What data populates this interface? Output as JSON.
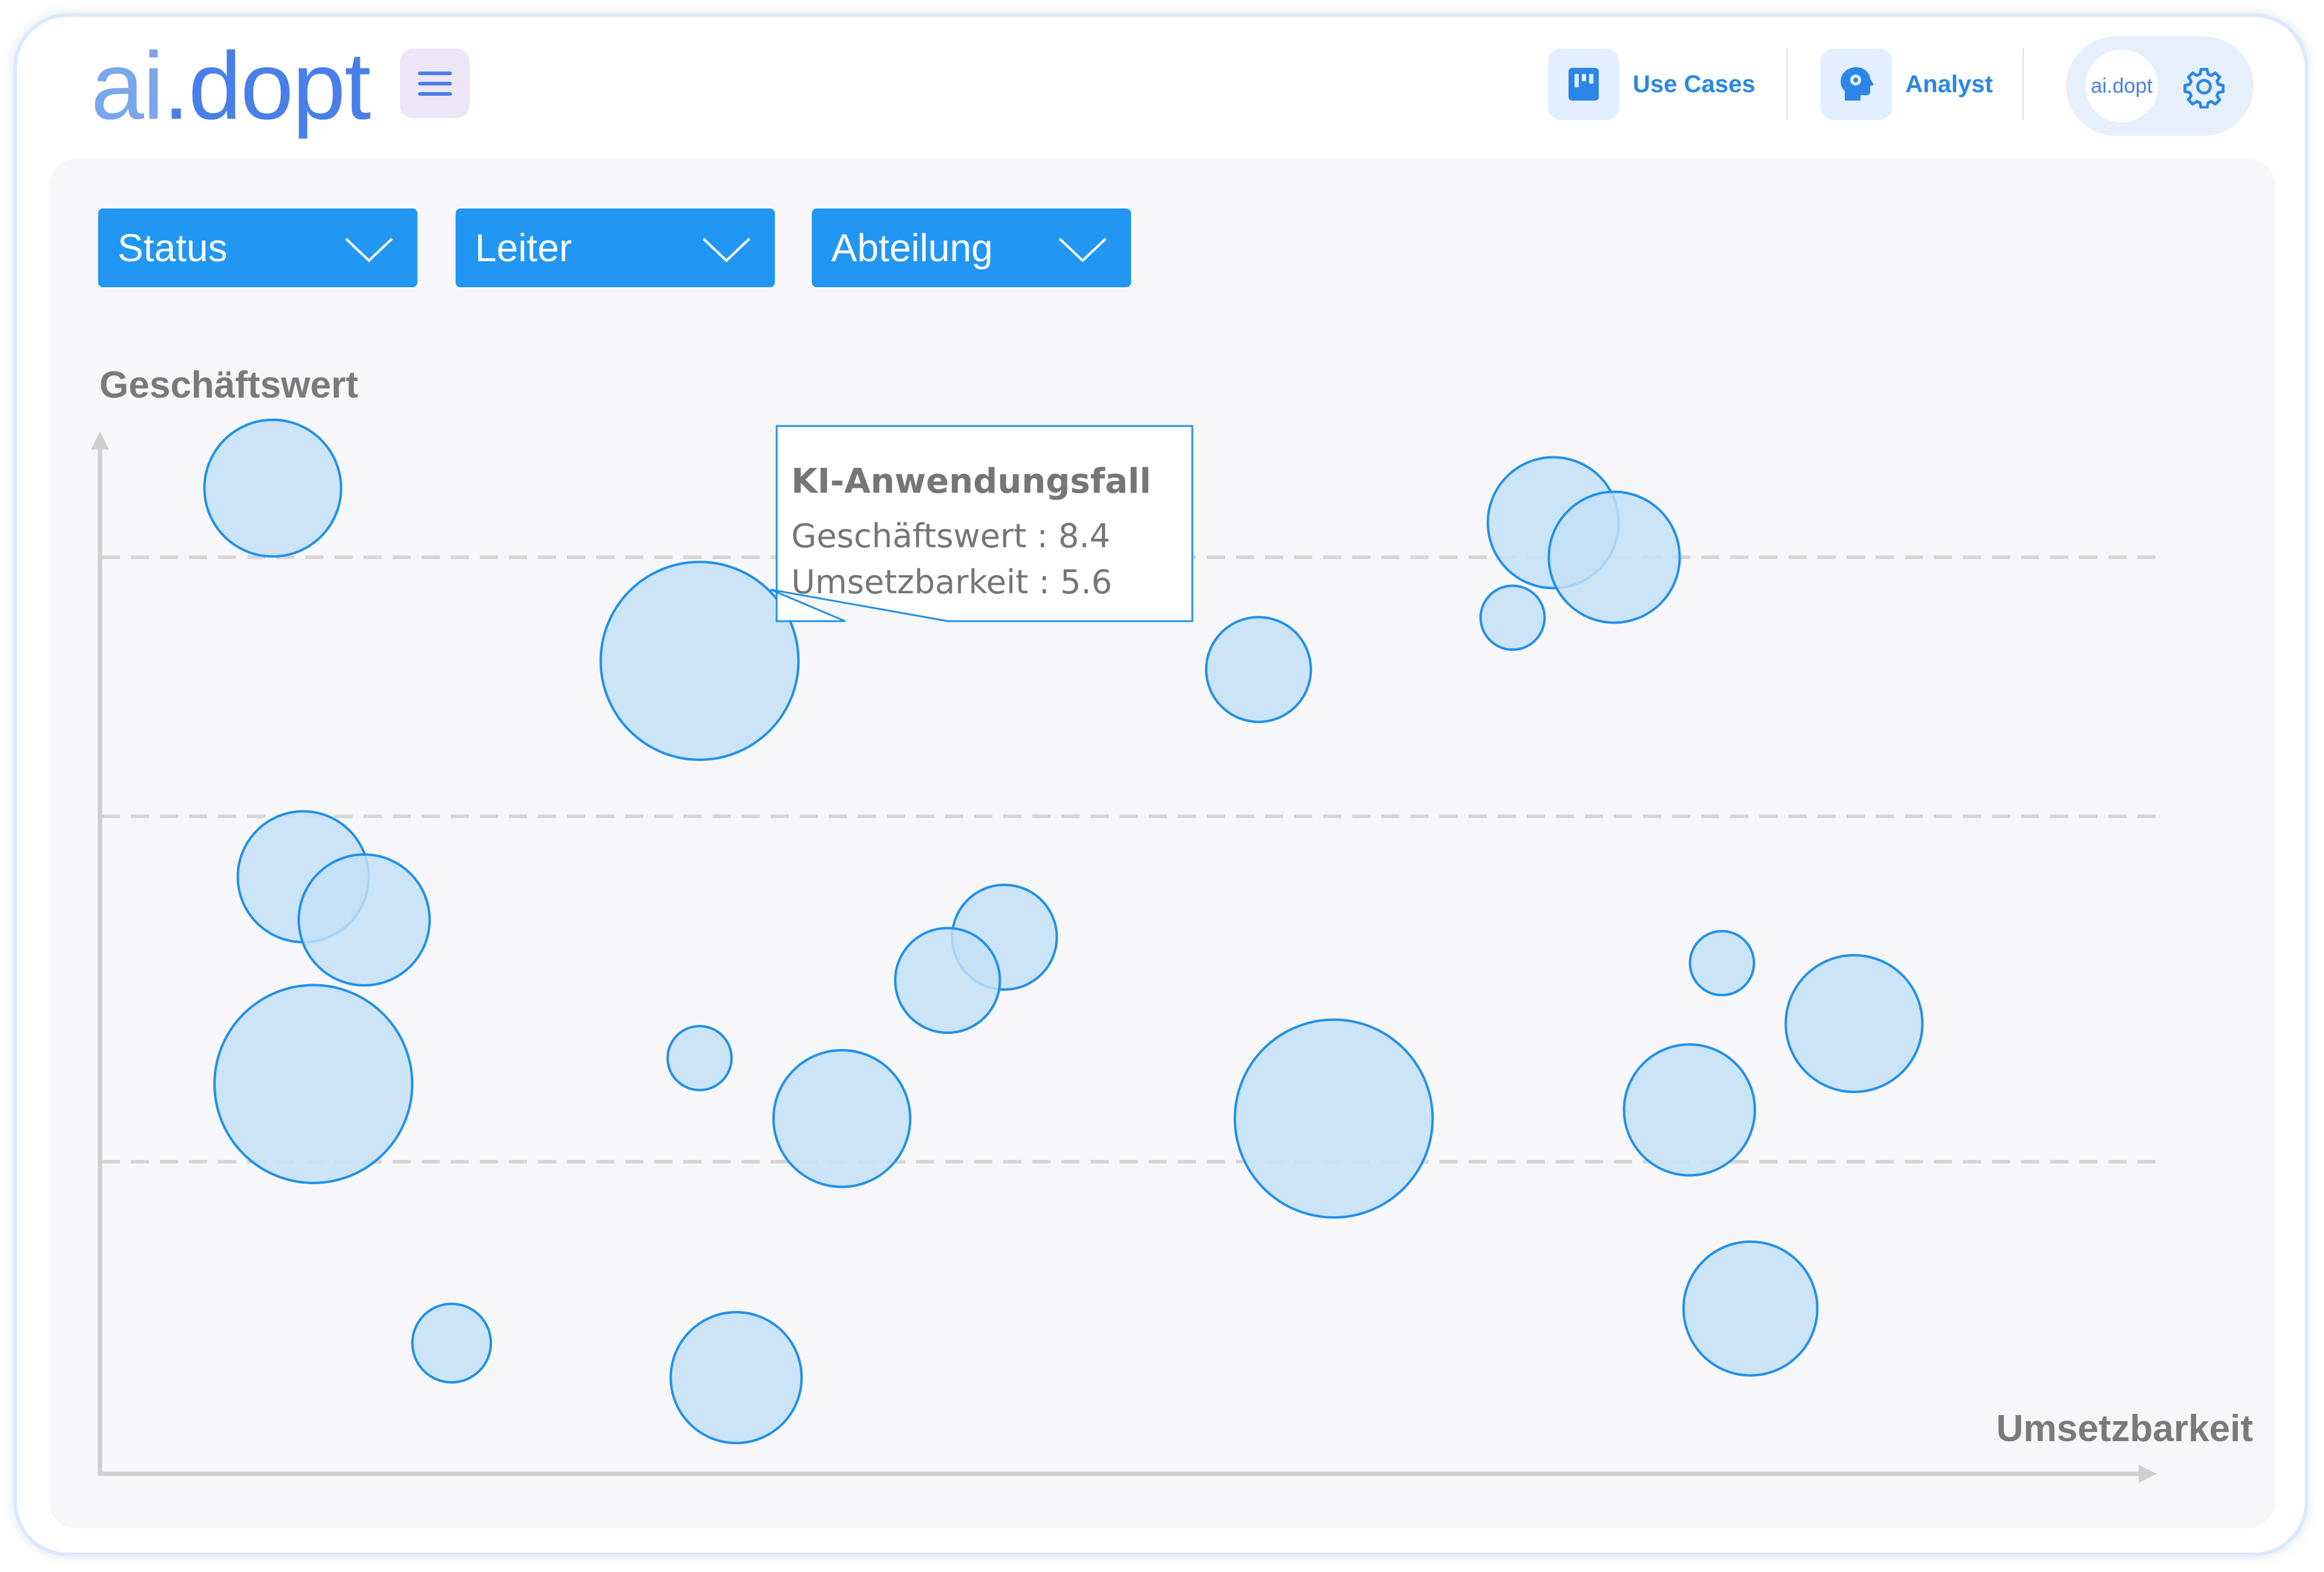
{
  "app": {
    "logo_prefix": "ai",
    "logo_suffix": ".dopt"
  },
  "header": {
    "nav": [
      {
        "label": "Use Cases",
        "icon": "board-icon"
      },
      {
        "label": "Analyst",
        "icon": "brain-head-icon"
      }
    ],
    "avatar_text": "ai.dopt",
    "settings_icon": "gear-icon"
  },
  "filters": [
    {
      "label": "Status"
    },
    {
      "label": "Leiter"
    },
    {
      "label": "Abteilung"
    }
  ],
  "colors": {
    "accent": "#2196f3",
    "bubble_fill": "#c3e0f8",
    "bubble_stroke": "#2090ea",
    "grid": "#d6d6d6",
    "axis": "#cfcfcf"
  },
  "tooltip": {
    "title": "KI-Anwendungsfall",
    "line1": "Geschäftswert : 8.4",
    "line2": "Umsetzbarkeit : 5.6"
  },
  "chart_data": {
    "type": "scatter",
    "variant": "bubble",
    "xlabel": "Umsetzbarkeit",
    "ylabel": "Geschäftswert",
    "xlim": [
      0,
      10
    ],
    "ylim": [
      0,
      12
    ],
    "grid": "horizontal-dashed",
    "gridlines_y": [
      3.6,
      7.6,
      10.6
    ],
    "points": [
      {
        "x": 0.85,
        "y": 11.4,
        "size": 47
      },
      {
        "x": 2.95,
        "y": 9.4,
        "size": 68
      },
      {
        "x": 5.7,
        "y": 9.3,
        "size": 36
      },
      {
        "x": 7.15,
        "y": 11.0,
        "size": 45
      },
      {
        "x": 7.45,
        "y": 10.6,
        "size": 45
      },
      {
        "x": 6.95,
        "y": 9.9,
        "size": 22
      },
      {
        "x": 1.0,
        "y": 6.9,
        "size": 45
      },
      {
        "x": 1.3,
        "y": 6.4,
        "size": 45
      },
      {
        "x": 1.05,
        "y": 4.5,
        "size": 68
      },
      {
        "x": 4.45,
        "y": 6.2,
        "size": 36
      },
      {
        "x": 4.17,
        "y": 5.7,
        "size": 36
      },
      {
        "x": 2.95,
        "y": 4.8,
        "size": 22
      },
      {
        "x": 3.65,
        "y": 4.1,
        "size": 47
      },
      {
        "x": 6.07,
        "y": 4.1,
        "size": 68
      },
      {
        "x": 7.98,
        "y": 5.9,
        "size": 22
      },
      {
        "x": 8.63,
        "y": 5.2,
        "size": 47
      },
      {
        "x": 7.82,
        "y": 4.2,
        "size": 45
      },
      {
        "x": 1.73,
        "y": 1.5,
        "size": 27
      },
      {
        "x": 3.13,
        "y": 1.1,
        "size": 45
      },
      {
        "x": 8.12,
        "y": 1.9,
        "size": 46
      }
    ],
    "highlighted": {
      "x": 5.6,
      "y": 8.4
    }
  }
}
